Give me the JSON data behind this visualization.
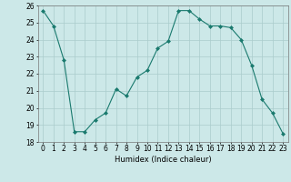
{
  "x": [
    0,
    1,
    2,
    3,
    4,
    5,
    6,
    7,
    8,
    9,
    10,
    11,
    12,
    13,
    14,
    15,
    16,
    17,
    18,
    19,
    20,
    21,
    22,
    23
  ],
  "y": [
    25.7,
    24.8,
    22.8,
    18.6,
    18.6,
    19.3,
    19.7,
    21.1,
    20.7,
    21.8,
    22.2,
    23.5,
    23.9,
    25.7,
    25.7,
    25.2,
    24.8,
    24.8,
    24.7,
    24.0,
    22.5,
    20.5,
    19.7,
    18.5
  ],
  "line_color": "#1a7a6e",
  "marker": "D",
  "marker_size": 2,
  "bg_color": "#cce8e8",
  "grid_color": "#aacccc",
  "xlabel": "Humidex (Indice chaleur)",
  "ylim": [
    18,
    26
  ],
  "xlim_min": -0.5,
  "xlim_max": 23.5,
  "yticks": [
    18,
    19,
    20,
    21,
    22,
    23,
    24,
    25,
    26
  ],
  "xticks": [
    0,
    1,
    2,
    3,
    4,
    5,
    6,
    7,
    8,
    9,
    10,
    11,
    12,
    13,
    14,
    15,
    16,
    17,
    18,
    19,
    20,
    21,
    22,
    23
  ],
  "label_fontsize": 6,
  "tick_fontsize": 5.5
}
